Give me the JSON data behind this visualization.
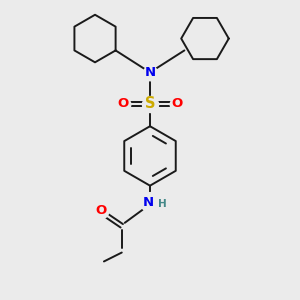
{
  "bg_color": "#ebebeb",
  "bond_color": "#1a1a1a",
  "bond_width": 1.4,
  "atom_colors": {
    "N": "#0000ee",
    "S": "#ccaa00",
    "O": "#ff0000",
    "H": "#448888"
  },
  "font_size": 9.5,
  "font_size_h": 7.5,
  "figsize": [
    3.0,
    3.0
  ],
  "dpi": 100
}
